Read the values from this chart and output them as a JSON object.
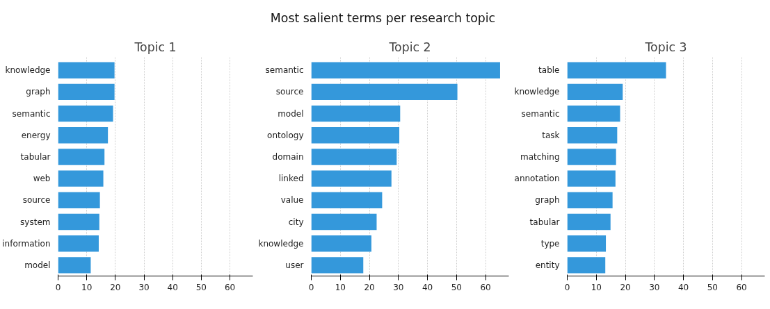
{
  "chart_data": [
    {
      "type": "bar",
      "orientation": "horizontal",
      "title": "Topic 1",
      "annotations": [
        "Most salient terms per research topic"
      ],
      "categories": [
        "knowledge",
        "graph",
        "semantic",
        "energy",
        "tabular",
        "web",
        "source",
        "system",
        "information",
        "model"
      ],
      "values": [
        19.7,
        19.7,
        19.2,
        17.4,
        16.2,
        15.8,
        14.6,
        14.4,
        14.2,
        11.4
      ],
      "color": "#3498db",
      "xlim": [
        0,
        68
      ],
      "xticks": [
        0,
        10,
        20,
        30,
        40,
        50,
        60
      ],
      "grid": "x",
      "legend": false
    },
    {
      "type": "bar",
      "orientation": "horizontal",
      "title": "Topic 2",
      "categories": [
        "semantic",
        "source",
        "model",
        "ontology",
        "domain",
        "linked",
        "value",
        "city",
        "knowledge",
        "user"
      ],
      "values": [
        65,
        50.3,
        30.6,
        30.3,
        29.4,
        27.6,
        24.4,
        22.5,
        20.7,
        17.9
      ],
      "color": "#3498db",
      "xlim": [
        0,
        68
      ],
      "xticks": [
        0,
        10,
        20,
        30,
        40,
        50,
        60
      ],
      "grid": "x",
      "legend": false
    },
    {
      "type": "bar",
      "orientation": "horizontal",
      "title": "Topic 3",
      "categories": [
        "table",
        "knowledge",
        "semantic",
        "task",
        "matching",
        "annotation",
        "graph",
        "tabular",
        "type",
        "entity"
      ],
      "values": [
        34,
        19.1,
        18.2,
        17.2,
        16.8,
        16.6,
        15.6,
        14.9,
        13.3,
        13.1
      ],
      "color": "#3498db",
      "xlim": [
        0,
        68
      ],
      "xticks": [
        0,
        10,
        20,
        30,
        40,
        50,
        60
      ],
      "grid": "x",
      "legend": false
    }
  ]
}
